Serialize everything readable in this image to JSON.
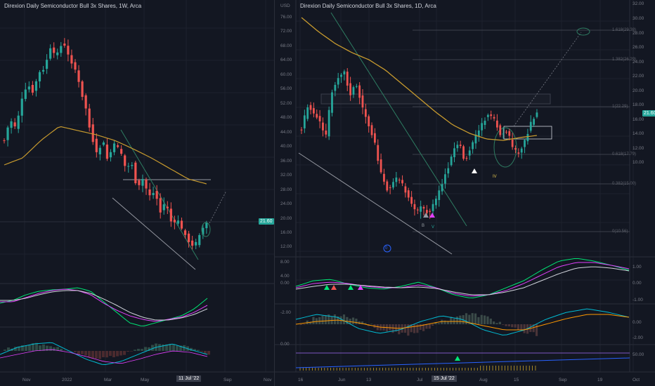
{
  "left_chart": {
    "title": "Direxion Daily Semiconductor Bull 3x Shares, 1W, Arca",
    "price_tag": "21.60",
    "date_tag": "11 Jul '22",
    "x_labels": [
      "Nov",
      "2022",
      "Mar",
      "May",
      "Sep",
      "Nov"
    ]
  },
  "right_chart": {
    "title": "Direxion Daily Semiconductor Bull 3x Shares, 1D, Arca",
    "currency": "USD",
    "price_tag": "21.60",
    "date_tag": "15 Jul '22",
    "x_labels": [
      "16",
      "Jun",
      "13",
      "Jul",
      "Aug",
      "15",
      "Sep",
      "19",
      "Oct"
    ],
    "y_labels_left": [
      "76.00",
      "72.00",
      "68.00",
      "64.00",
      "60.00",
      "56.00",
      "52.00",
      "48.00",
      "44.00",
      "40.00",
      "36.00",
      "32.00",
      "28.00",
      "24.00",
      "20.00",
      "16.00",
      "12.00",
      "8.00",
      "4.00",
      "0.00",
      "-2.00",
      "0.00"
    ],
    "y_labels_right": [
      "32.00",
      "30.00",
      "28.00",
      "26.00",
      "24.00",
      "22.00",
      "20.00",
      "18.00",
      "16.00",
      "14.00",
      "12.00",
      "10.00",
      "1.00",
      "0.00",
      "-1.00",
      "0.00",
      "-2.00",
      "50.00"
    ],
    "fib_labels": [
      "1.618(29.38)",
      "1.382(26.29)",
      "1(22.29)",
      "0.618(17.79)",
      "0.382(15.00)",
      "0(10.56)"
    ],
    "wave_labels": {
      "iv": "IV",
      "b": "B",
      "v": "V",
      "circled": "0"
    }
  },
  "colors": {
    "up": "#26a69a",
    "down": "#ef5350",
    "ma": "#c79a2e",
    "background": "#131722",
    "grid": "#1e222d"
  }
}
